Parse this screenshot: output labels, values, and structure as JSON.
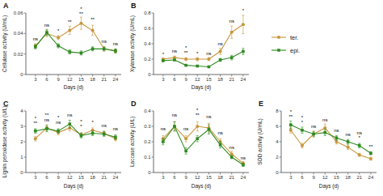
{
  "chart_data": [
    {
      "type": "line",
      "title": "A",
      "x_label": "Days (d)",
      "y_label": "Cellulase activity (U/mL)",
      "x": [
        3,
        6,
        9,
        12,
        15,
        18,
        21,
        24
      ],
      "xlim": [
        0.5,
        25.5
      ],
      "xticks": [
        3,
        6,
        9,
        12,
        15,
        18,
        21,
        24
      ],
      "ylim": [
        0,
        0.06
      ],
      "yticks": [
        0,
        0.02,
        0.04,
        0.06
      ],
      "grid": false,
      "series": [
        {
          "name": "ter.",
          "color": "#C8963C",
          "marker": "circle",
          "values": [
            0.028,
            0.04,
            0.036,
            0.043,
            0.05,
            0.043,
            0.025,
            0.023
          ],
          "errors": [
            0.002,
            0.003,
            0.002,
            0.004,
            0.006,
            0.005,
            0.002,
            0.002
          ]
        },
        {
          "name": "epi.",
          "color": "#2E8B22",
          "marker": "square",
          "values": [
            0.027,
            0.041,
            0.028,
            0.022,
            0.021,
            0.025,
            0.025,
            0.023
          ],
          "errors": [
            0.002,
            0.003,
            0.002,
            0.002,
            0.002,
            0.002,
            0.002,
            0.002
          ]
        }
      ],
      "annotations": [
        {
          "x": 3,
          "y": 0.032,
          "lines": [
            "ns"
          ]
        },
        {
          "x": 6,
          "y": 0.046,
          "lines": [
            "ns"
          ]
        },
        {
          "x": 9,
          "y": 0.04,
          "lines": [
            "*"
          ]
        },
        {
          "x": 12,
          "y": 0.049,
          "lines": [
            "**"
          ]
        },
        {
          "x": 15,
          "y": 0.057,
          "lines": [
            "*",
            "**"
          ]
        },
        {
          "x": 18,
          "y": 0.051,
          "lines": [
            "**"
          ]
        },
        {
          "x": 21,
          "y": 0.03,
          "lines": [
            "ns"
          ]
        },
        {
          "x": 24,
          "y": 0.028,
          "lines": [
            "ns"
          ]
        }
      ]
    },
    {
      "type": "line",
      "title": "B",
      "x_label": "Days (d)",
      "y_label": "Xylanase activity (U/mL)",
      "x": [
        3,
        6,
        9,
        12,
        15,
        18,
        21,
        24
      ],
      "xlim": [
        0.5,
        25.5
      ],
      "xticks": [
        3,
        6,
        9,
        12,
        15,
        18,
        21,
        24
      ],
      "ylim": [
        0,
        0.8
      ],
      "yticks": [
        0,
        0.2,
        0.4,
        0.6,
        0.8
      ],
      "grid": false,
      "legend": "right",
      "series": [
        {
          "name": "ter.",
          "color": "#C8963C",
          "marker": "circle",
          "values": [
            0.2,
            0.22,
            0.2,
            0.2,
            0.2,
            0.3,
            0.55,
            0.65
          ],
          "errors": [
            0.01,
            0.02,
            0.02,
            0.02,
            0.02,
            0.04,
            0.08,
            0.12
          ]
        },
        {
          "name": "epi.",
          "color": "#2E8B22",
          "marker": "square",
          "values": [
            0.18,
            0.19,
            0.12,
            0.11,
            0.1,
            0.19,
            0.22,
            0.3
          ],
          "errors": [
            0.01,
            0.01,
            0.01,
            0.01,
            0.01,
            0.02,
            0.03,
            0.04
          ]
        }
      ],
      "annotations": [
        {
          "x": 3,
          "y": 0.23,
          "lines": [
            "*"
          ]
        },
        {
          "x": 6,
          "y": 0.27,
          "lines": [
            "ns"
          ]
        },
        {
          "x": 9,
          "y": 0.25,
          "lines": [
            "*",
            "**"
          ]
        },
        {
          "x": 12,
          "y": 0.24,
          "lines": [
            "*"
          ]
        },
        {
          "x": 15,
          "y": 0.24,
          "lines": [
            "ns"
          ]
        },
        {
          "x": 18,
          "y": 0.37,
          "lines": [
            "ns"
          ]
        },
        {
          "x": 21,
          "y": 0.66,
          "lines": [
            "ns"
          ]
        },
        {
          "x": 24,
          "y": 0.8,
          "lines": [
            "*"
          ]
        }
      ]
    },
    {
      "type": "line",
      "title": "C",
      "x_label": "Days (d)",
      "y_label": "Lignin peroxidase activity (U/L)",
      "x": [
        3,
        6,
        9,
        12,
        15,
        18,
        21,
        24
      ],
      "xlim": [
        0.5,
        25.5
      ],
      "xticks": [
        3,
        6,
        9,
        12,
        15,
        18,
        21,
        24
      ],
      "ylim": [
        0,
        4
      ],
      "yticks": [
        0,
        1,
        2,
        3,
        4
      ],
      "grid": false,
      "series": [
        {
          "name": "ter.",
          "color": "#C8963C",
          "marker": "circle",
          "values": [
            2.2,
            2.9,
            2.6,
            2.9,
            2.45,
            2.75,
            2.55,
            2.2
          ],
          "errors": [
            0.15,
            0.2,
            0.15,
            0.2,
            0.15,
            0.15,
            0.15,
            0.15
          ]
        },
        {
          "name": "epi.",
          "color": "#2E8B22",
          "marker": "square",
          "values": [
            2.7,
            2.85,
            2.7,
            3.15,
            2.4,
            2.55,
            2.5,
            2.3
          ],
          "errors": [
            0.15,
            0.2,
            0.15,
            0.25,
            0.15,
            0.15,
            0.15,
            0.15
          ]
        }
      ],
      "annotations": [
        {
          "x": 3,
          "y": 3.05,
          "lines": [
            "*",
            "**"
          ]
        },
        {
          "x": 6,
          "y": 3.25,
          "lines": [
            "**",
            "ns"
          ]
        },
        {
          "x": 9,
          "y": 3.08,
          "lines": [
            "*",
            "ns"
          ]
        },
        {
          "x": 12,
          "y": 3.6,
          "lines": [
            "ns"
          ]
        },
        {
          "x": 15,
          "y": 2.82,
          "lines": [
            "*",
            "*"
          ]
        },
        {
          "x": 18,
          "y": 3.1,
          "lines": [
            "*"
          ]
        },
        {
          "x": 21,
          "y": 2.9,
          "lines": [
            "ns"
          ]
        },
        {
          "x": 24,
          "y": 2.7,
          "lines": [
            "ns"
          ]
        }
      ]
    },
    {
      "type": "line",
      "title": "D",
      "x_label": "Days (d)",
      "y_label": "Laccase activity (U/L)",
      "x": [
        3,
        6,
        9,
        12,
        15,
        18,
        21,
        24
      ],
      "xlim": [
        0.5,
        25.5
      ],
      "xticks": [
        3,
        6,
        9,
        12,
        15,
        18,
        21,
        24
      ],
      "ylim": [
        0,
        0.4
      ],
      "yticks": [
        0,
        0.1,
        0.2,
        0.3,
        0.4
      ],
      "grid": false,
      "series": [
        {
          "name": "ter.",
          "color": "#C8963C",
          "marker": "circle",
          "values": [
            0.22,
            0.3,
            0.22,
            0.3,
            0.29,
            0.2,
            0.12,
            0.06
          ],
          "errors": [
            0.02,
            0.03,
            0.02,
            0.03,
            0.03,
            0.02,
            0.02,
            0.01
          ]
        },
        {
          "name": "epi.",
          "color": "#2E8B22",
          "marker": "square",
          "values": [
            0.2,
            0.3,
            0.14,
            0.22,
            0.28,
            0.18,
            0.1,
            0.05
          ],
          "errors": [
            0.02,
            0.03,
            0.02,
            0.02,
            0.03,
            0.02,
            0.01,
            0.01
          ]
        }
      ],
      "annotations": [
        {
          "x": 3,
          "y": 0.27,
          "lines": [
            "ns"
          ]
        },
        {
          "x": 6,
          "y": 0.36,
          "lines": [
            "ns"
          ]
        },
        {
          "x": 9,
          "y": 0.27,
          "lines": [
            "ns"
          ]
        },
        {
          "x": 12,
          "y": 0.36,
          "lines": [
            "*",
            "**"
          ]
        },
        {
          "x": 15,
          "y": 0.35,
          "lines": [
            "ns"
          ]
        },
        {
          "x": 18,
          "y": 0.24,
          "lines": [
            "ns"
          ]
        },
        {
          "x": 21,
          "y": 0.15,
          "lines": [
            "ns"
          ]
        },
        {
          "x": 24,
          "y": 0.08,
          "lines": [
            "ns"
          ]
        }
      ]
    },
    {
      "type": "line",
      "title": "E",
      "x_label": "Days (d)",
      "y_label": "SOD activity (U/mL)",
      "x": [
        3,
        6,
        9,
        12,
        15,
        18,
        21,
        24
      ],
      "xlim": [
        0.5,
        25.5
      ],
      "xticks": [
        3,
        6,
        9,
        12,
        15,
        18,
        21,
        24
      ],
      "ylim": [
        0,
        8
      ],
      "yticks": [
        0,
        2,
        4,
        6,
        8
      ],
      "grid": false,
      "series": [
        {
          "name": "ter.",
          "color": "#C8963C",
          "marker": "circle",
          "values": [
            5.5,
            3.5,
            5.0,
            5.8,
            4.0,
            3.3,
            2.3,
            1.8
          ],
          "errors": [
            0.4,
            0.3,
            0.4,
            0.5,
            0.3,
            0.3,
            0.2,
            0.2
          ]
        },
        {
          "name": "epi.",
          "color": "#2E8B22",
          "marker": "square",
          "values": [
            6.2,
            5.5,
            5.0,
            5.2,
            4.5,
            4.0,
            3.5,
            2.5
          ],
          "errors": [
            0.5,
            0.4,
            0.3,
            0.4,
            0.3,
            0.3,
            0.3,
            0.2
          ]
        }
      ],
      "annotations": [
        {
          "x": 3,
          "y": 7.0,
          "lines": [
            "*",
            "**"
          ]
        },
        {
          "x": 6,
          "y": 6.2,
          "lines": [
            "*",
            "*"
          ]
        },
        {
          "x": 9,
          "y": 5.7,
          "lines": [
            "ns"
          ]
        },
        {
          "x": 12,
          "y": 6.5,
          "lines": [
            "ns"
          ]
        },
        {
          "x": 15,
          "y": 5.2,
          "lines": [
            "ns"
          ]
        },
        {
          "x": 18,
          "y": 4.6,
          "lines": [
            "ns"
          ]
        },
        {
          "x": 21,
          "y": 4.2,
          "lines": [
            "ns",
            "*"
          ]
        },
        {
          "x": 24,
          "y": 3.1,
          "lines": [
            "**"
          ]
        }
      ]
    }
  ]
}
